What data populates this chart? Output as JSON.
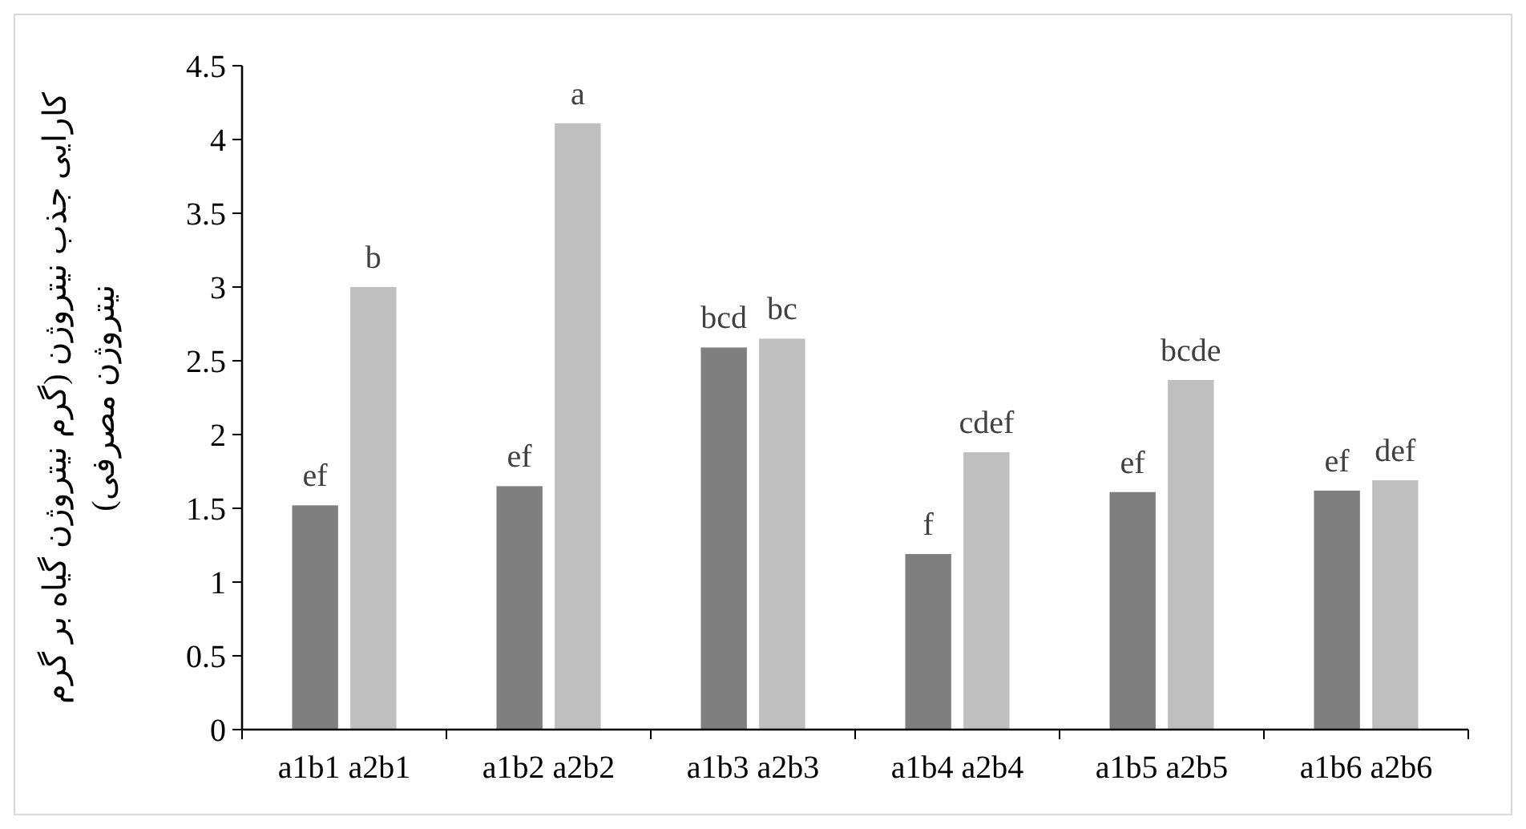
{
  "chart_data": {
    "type": "bar",
    "ylabel": "کارایی جذب نیتروژن (گرم نیتروژن گیاه بر گرم نیتروژن مصرفی)",
    "categories": [
      "a1b1 a2b1",
      "a1b2 a2b2",
      "a1b3 a2b3",
      "a1b4 a2b4",
      "a1b5 a2b5",
      "a1b6 a2b6"
    ],
    "series": [
      {
        "color": "#7f7f7f",
        "values": [
          1.52,
          1.65,
          2.59,
          1.19,
          1.61,
          1.62
        ],
        "value_labels": [
          "ef",
          "ef",
          "bcd",
          "f",
          "ef",
          "ef"
        ]
      },
      {
        "color": "#bfbfbf",
        "values": [
          3.0,
          4.11,
          2.65,
          1.88,
          2.37,
          1.69
        ],
        "value_labels": [
          "b",
          "a",
          "bc",
          "cdef",
          "bcde",
          "def"
        ]
      }
    ],
    "ylim": [
      0,
      4.5
    ],
    "yticks": [
      0,
      0.5,
      1,
      1.5,
      2,
      2.5,
      3,
      3.5,
      4,
      4.5
    ],
    "grid": false
  }
}
